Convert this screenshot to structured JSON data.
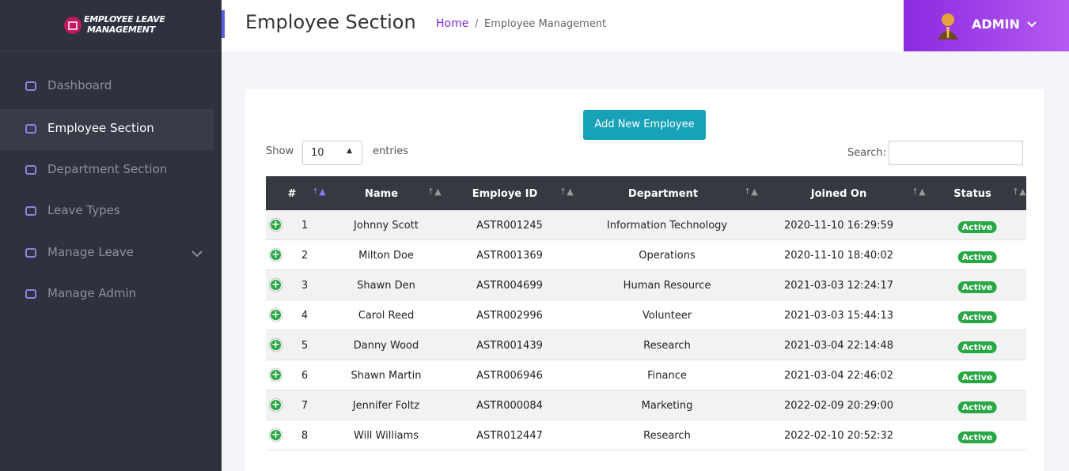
{
  "logo": {
    "line1": "Employee Leave",
    "line2": "Management"
  },
  "sidebar": {
    "items": [
      "Dashboard",
      "Employee Section",
      "Department Section",
      "Leave Types",
      "Manage Leave",
      "Manage Admin"
    ]
  },
  "header": {
    "title": "Employee Section",
    "breadcrumb": {
      "home": "Home",
      "separator": "/",
      "current": "Employee Management"
    },
    "user": "ADMIN"
  },
  "controls": {
    "button": "Add New Employee",
    "show": "Show",
    "entries_value": "10",
    "entries": "entries",
    "search": "Search:"
  },
  "table": {
    "columns": [
      "#",
      "Name",
      "Employe ID",
      "Department",
      "Joined On",
      "Status"
    ],
    "rows": [
      [
        "1",
        "Johnny Scott",
        "ASTR001245",
        "Information Technology",
        "2020-11-10 16:29:59",
        "Active"
      ],
      [
        "2",
        "Milton Doe",
        "ASTR001369",
        "Operations",
        "2020-11-10 18:40:02",
        "Active"
      ],
      [
        "3",
        "Shawn Den",
        "ASTR004699",
        "Human Resource",
        "2021-03-03 12:24:17",
        "Active"
      ],
      [
        "4",
        "Carol Reed",
        "ASTR002996",
        "Volunteer",
        "2021-03-03 15:44:13",
        "Active"
      ],
      [
        "5",
        "Danny Wood",
        "ASTR001439",
        "Research",
        "2021-03-04 22:14:48",
        "Active"
      ],
      [
        "6",
        "Shawn Martin",
        "ASTR006946",
        "Finance",
        "2021-03-04 22:46:02",
        "Active"
      ],
      [
        "7",
        "Jennifer Foltz",
        "ASTR000084",
        "Marketing",
        "2022-02-09 20:29:00",
        "Active"
      ],
      [
        "8",
        "Will Williams",
        "ASTR012447",
        "Research",
        "2022-02-10 20:52:32",
        "Active"
      ]
    ]
  }
}
